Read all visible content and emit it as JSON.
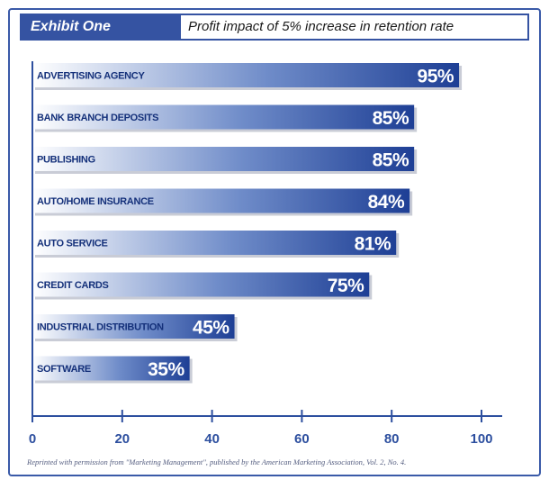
{
  "header": {
    "exhibit_label": "Exhibit One",
    "title": "Profit impact of 5% increase in retention rate"
  },
  "chart_data": {
    "type": "bar",
    "orientation": "horizontal",
    "categories": [
      "ADVERTISING AGENCY",
      "BANK BRANCH DEPOSITS",
      "PUBLISHING",
      "AUTO/HOME INSURANCE",
      "AUTO SERVICE",
      "CREDIT CARDS",
      "INDUSTRIAL DISTRIBUTION",
      "SOFTWARE"
    ],
    "values": [
      95,
      85,
      85,
      84,
      81,
      75,
      45,
      35
    ],
    "value_labels": [
      "95%",
      "85%",
      "85%",
      "84%",
      "81%",
      "75%",
      "45%",
      "35%"
    ],
    "title": "Profit impact of 5% increase in retention rate",
    "xlim": [
      0,
      100
    ],
    "x_ticks": [
      0,
      20,
      40,
      60,
      80,
      100
    ],
    "x_tick_labels": [
      "0",
      "20",
      "40",
      "60",
      "80",
      "100"
    ],
    "grid": false,
    "bar_color_start": "#ffffff",
    "bar_color_end": "#1e3f95",
    "axis_color": "#2d4f9f"
  },
  "footnote": "Reprinted with permission from \"Marketing Management\", published by the American Marketing Association, Vol. 2, No. 4."
}
